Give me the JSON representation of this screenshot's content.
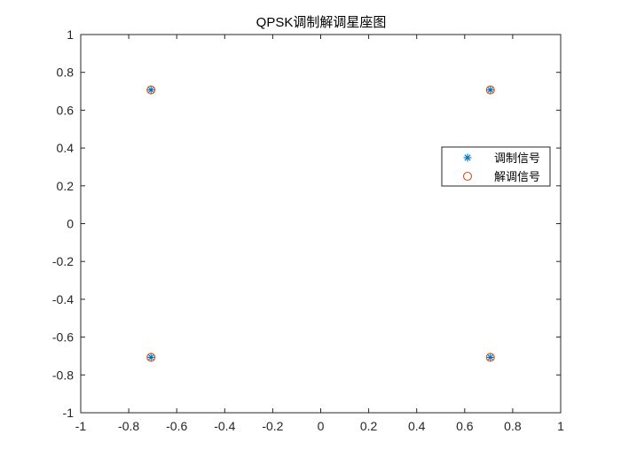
{
  "chart_data": {
    "type": "scatter",
    "title": "QPSK调制解调星座图",
    "xlabel": "",
    "ylabel": "",
    "xlim": [
      -1,
      1
    ],
    "ylim": [
      -1,
      1
    ],
    "xticks": [
      "-1",
      "-0.8",
      "-0.6",
      "-0.4",
      "-0.2",
      "0",
      "0.2",
      "0.4",
      "0.6",
      "0.8",
      "1"
    ],
    "yticks": [
      "1",
      "0.8",
      "0.6",
      "0.4",
      "0.2",
      "0",
      "-0.2",
      "-0.4",
      "-0.6",
      "-0.8",
      "-1"
    ],
    "grid": false,
    "legend_position": "right",
    "series": [
      {
        "name": "调制信号",
        "marker": "asterisk",
        "color": "#0072BD",
        "points": [
          [
            -0.707,
            0.707
          ],
          [
            0.707,
            0.707
          ],
          [
            -0.707,
            -0.707
          ],
          [
            0.707,
            -0.707
          ]
        ]
      },
      {
        "name": "解调信号",
        "marker": "circle",
        "color": "#D95319",
        "points": [
          [
            -0.707,
            0.707
          ],
          [
            0.707,
            0.707
          ],
          [
            -0.707,
            -0.707
          ],
          [
            0.707,
            -0.707
          ]
        ]
      }
    ]
  }
}
